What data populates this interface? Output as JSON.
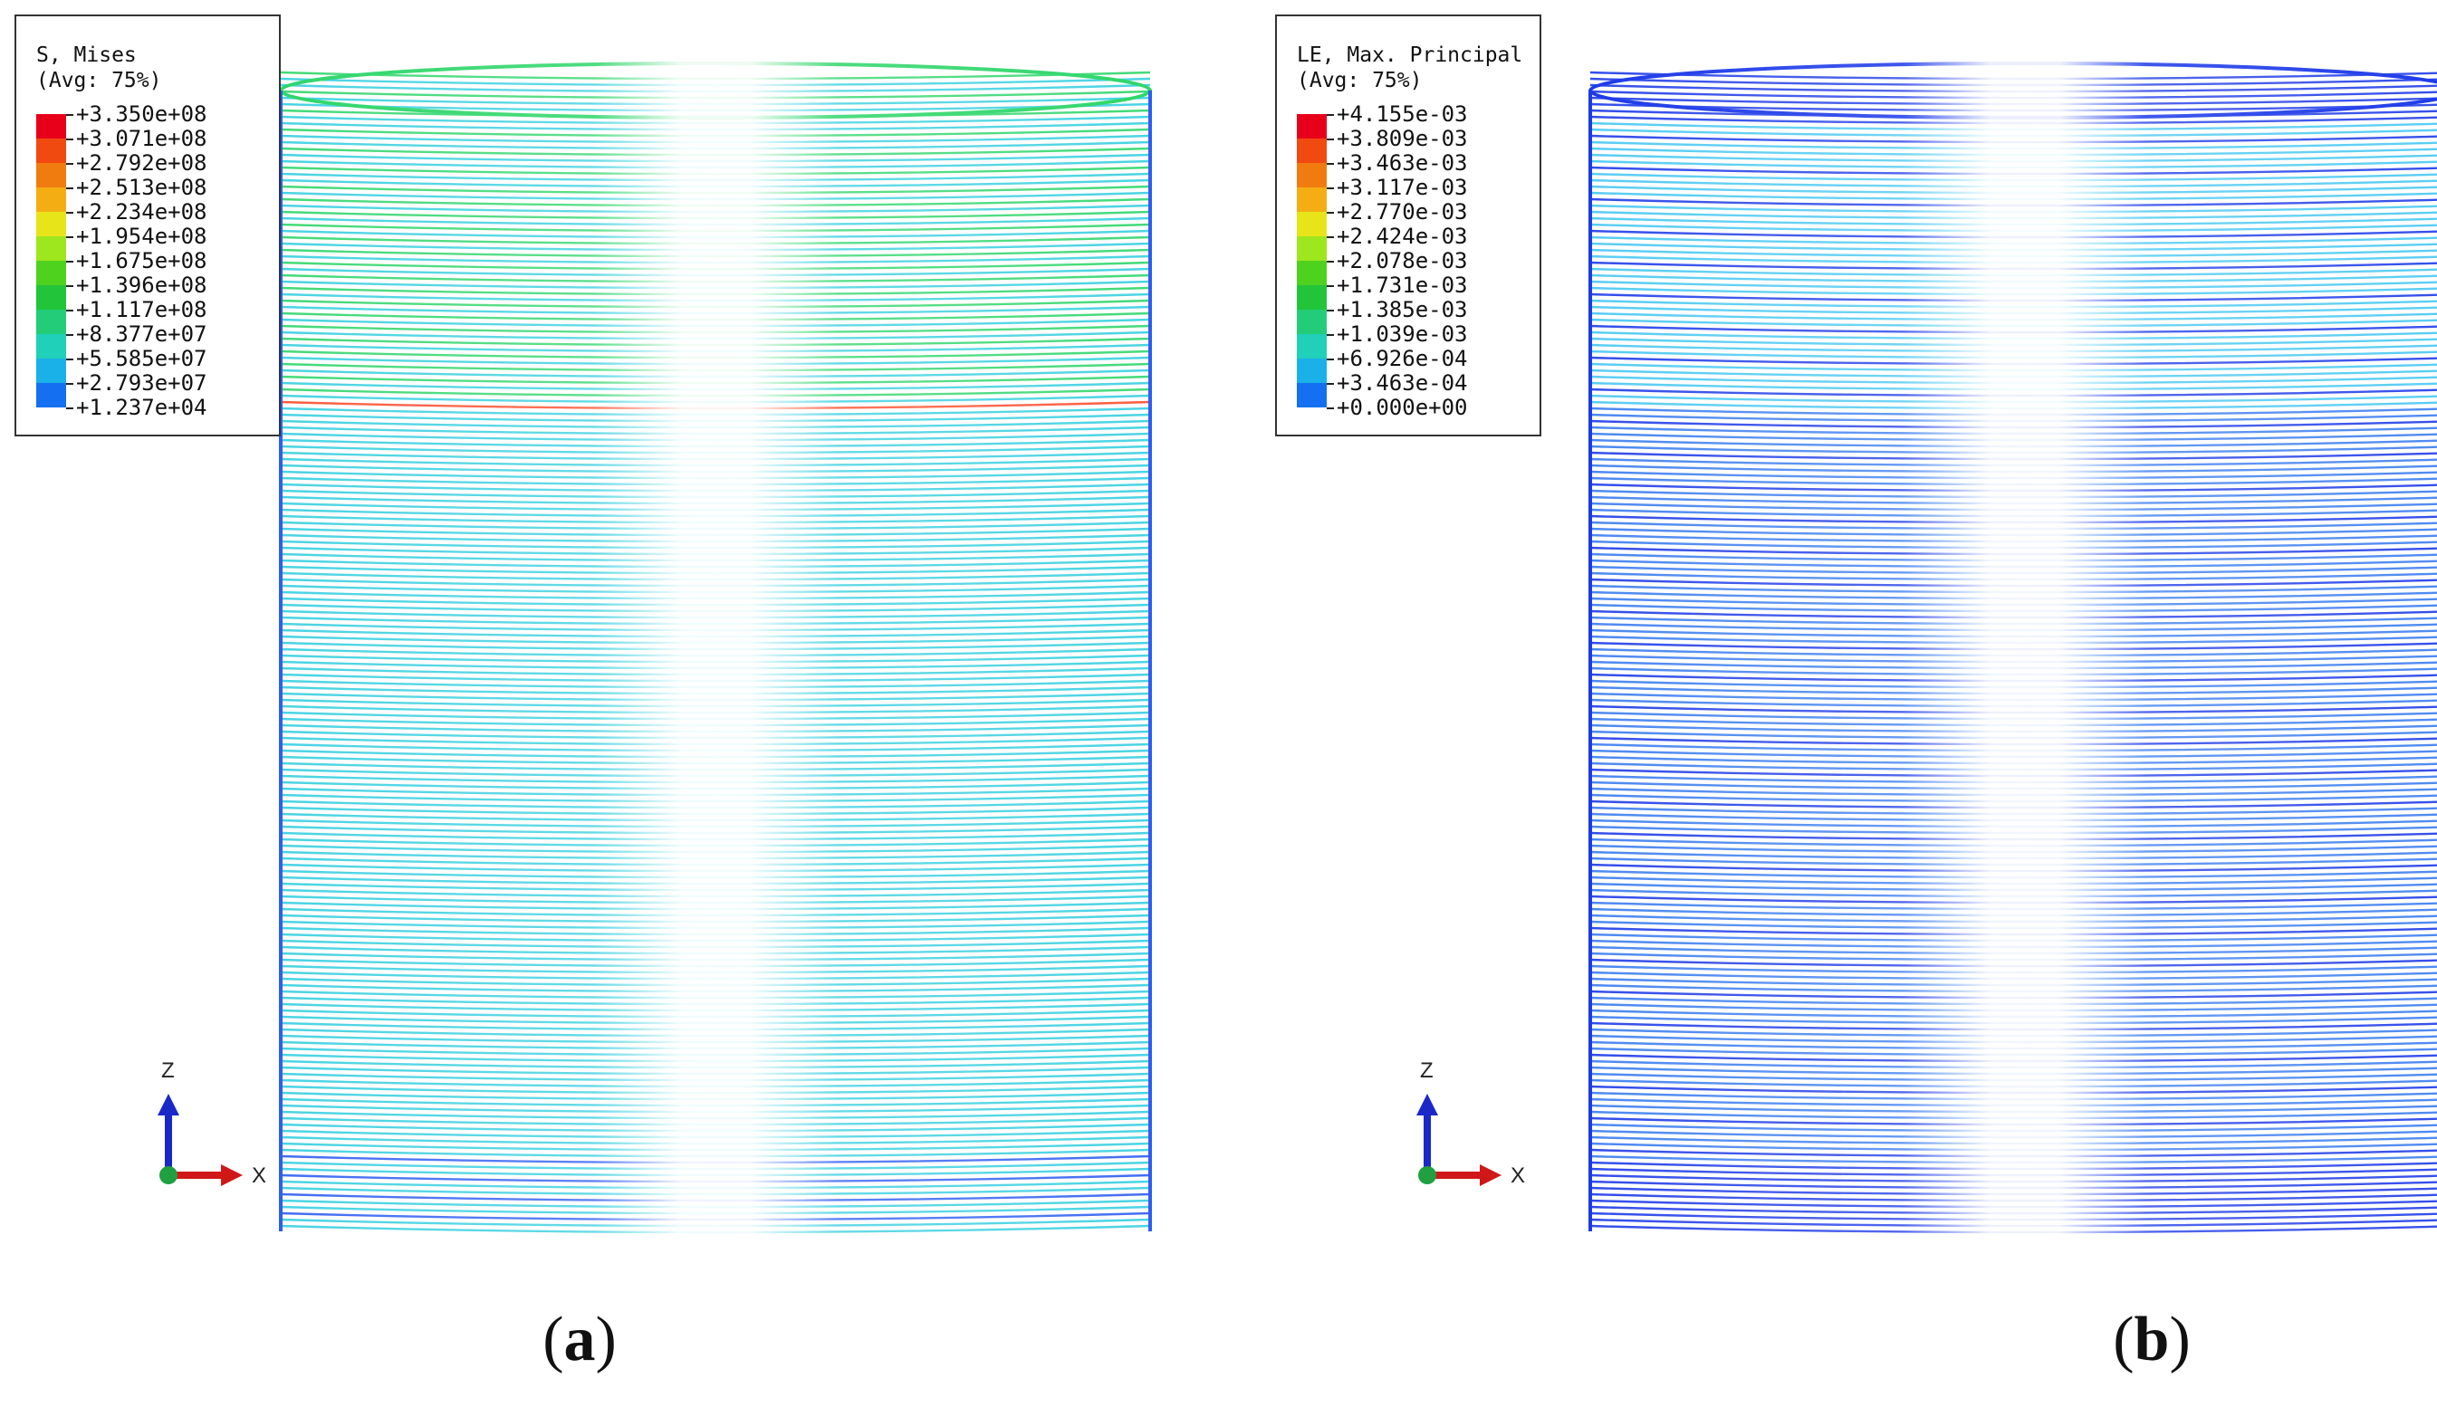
{
  "panels": [
    {
      "id": "a",
      "caption_open": "(",
      "caption_letter": "a",
      "caption_close": ")",
      "legend": {
        "title_line1": "S, Mises",
        "title_line2": "(Avg: 75%)",
        "values": [
          "+3.350e+08",
          "+3.071e+08",
          "+2.792e+08",
          "+2.513e+08",
          "+2.234e+08",
          "+1.954e+08",
          "+1.675e+08",
          "+1.396e+08",
          "+1.117e+08",
          "+8.377e+07",
          "+5.585e+07",
          "+2.793e+07",
          "+1.237e+04"
        ],
        "colors": [
          "#e8001a",
          "#f04a10",
          "#f07c10",
          "#f4ae14",
          "#e8e41a",
          "#9ee61e",
          "#4fd21e",
          "#22c43a",
          "#22cc78",
          "#20d0b8",
          "#1ab0e8",
          "#1470f0",
          "#1428f0"
        ]
      },
      "triad": {
        "axis_z": "Z",
        "axis_x": "X"
      },
      "palette": {
        "body": "#36cfe0",
        "accent": "#2fd66a",
        "warm": "#ff4a2a",
        "dark": "#2f5df2"
      }
    },
    {
      "id": "b",
      "caption_open": "(",
      "caption_letter": "b",
      "caption_close": ")",
      "legend": {
        "title_line1": "LE, Max. Principal",
        "title_line2": "(Avg: 75%)",
        "values": [
          "+4.155e-03",
          "+3.809e-03",
          "+3.463e-03",
          "+3.117e-03",
          "+2.770e-03",
          "+2.424e-03",
          "+2.078e-03",
          "+1.731e-03",
          "+1.385e-03",
          "+1.039e-03",
          "+6.926e-04",
          "+3.463e-04",
          "+0.000e+00"
        ],
        "colors": [
          "#e8001a",
          "#f04a10",
          "#f07c10",
          "#f4ae14",
          "#e8e41a",
          "#9ee61e",
          "#4fd21e",
          "#22c43a",
          "#22cc78",
          "#20d0b8",
          "#1ab0e8",
          "#1470f0",
          "#1428f0"
        ]
      },
      "triad": {
        "axis_z": "Z",
        "axis_x": "X"
      },
      "palette": {
        "body": "#3a7cf0",
        "accent": "#46c8f2",
        "warm": "#f07c10",
        "dark": "#1d3ae8"
      }
    }
  ]
}
